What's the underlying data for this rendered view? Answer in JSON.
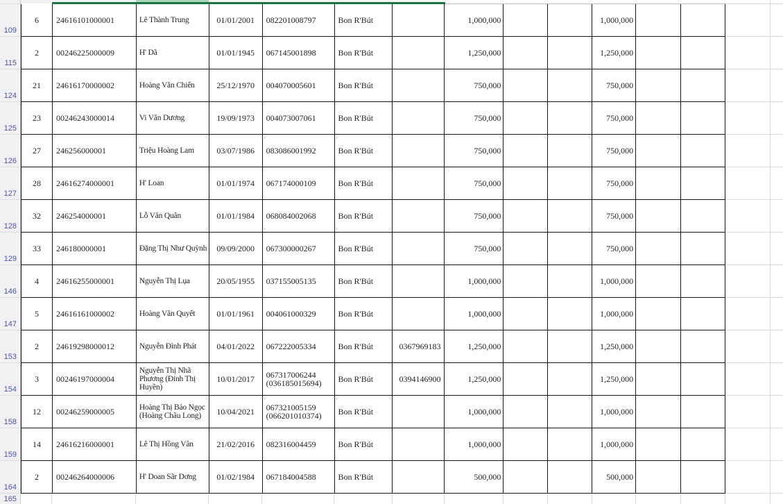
{
  "sheet": {
    "row_labels": [
      "109",
      "115",
      "124",
      "125",
      "126",
      "127",
      "128",
      "129",
      "146",
      "147",
      "153",
      "154",
      "158",
      "159",
      "164",
      "165"
    ],
    "colors": {
      "selection_border_green": "#1E7145",
      "selection_fill_green": "#A9D8BA",
      "row_label_blue": "#4A54A6",
      "cell_border": "#161616",
      "header_bg": "#F1F1F4"
    }
  },
  "table": {
    "rows": [
      {
        "count": "6",
        "id": "24616101000001",
        "name": "Lê Thành Trung",
        "dob": "01/01/2001",
        "id2": "082201008797",
        "village": "Bon R'Bút",
        "phone": "",
        "amount1": "1,000,000",
        "amount2": "1,000,000"
      },
      {
        "count": "2",
        "id": "00246225000009",
        "name": "H' Dã",
        "dob": "01/01/1945",
        "id2": "067145001898",
        "village": "Bon R'Bút",
        "phone": "",
        "amount1": "1,250,000",
        "amount2": "1,250,000"
      },
      {
        "count": "21",
        "id": "24616170000002",
        "name": "Hoàng Văn Chiến",
        "dob": "25/12/1970",
        "id2": "004070005601",
        "village": "Bon R'Bút",
        "phone": "",
        "amount1": "750,000",
        "amount2": "750,000"
      },
      {
        "count": "23",
        "id": "00246243000014",
        "name": "Vi Văn Dương",
        "dob": "19/09/1973",
        "id2": "004073007061",
        "village": "Bon R'Bút",
        "phone": "",
        "amount1": "750,000",
        "amount2": "750,000"
      },
      {
        "count": "27",
        "id": "246256000001",
        "name": "Triệu Hoàng Lam",
        "dob": "03/07/1986",
        "id2": "083086001992",
        "village": "Bon R'Bút",
        "phone": "",
        "amount1": "750,000",
        "amount2": "750,000"
      },
      {
        "count": "28",
        "id": "24616274000001",
        "name": "H' Loan",
        "dob": "01/01/1974",
        "id2": "067174000109",
        "village": "Bon R'Bút",
        "phone": "",
        "amount1": "750,000",
        "amount2": "750,000"
      },
      {
        "count": "32",
        "id": "246254000001",
        "name": "Lỗ Văn Quân",
        "dob": "01/01/1984",
        "id2": "068084002068",
        "village": "Bon R'Bút",
        "phone": "",
        "amount1": "750,000",
        "amount2": "750,000"
      },
      {
        "count": "33",
        "id": "246180000001",
        "name": "Đặng Thị Như Quỳnh",
        "dob": "09/09/2000",
        "id2": "067300000267",
        "village": "Bon R'Bút",
        "phone": "",
        "amount1": "750,000",
        "amount2": "750,000"
      },
      {
        "count": "4",
        "id": "24616255000001",
        "name": "Nguyễn Thị Lụa",
        "dob": "20/05/1955",
        "id2": "037155005135",
        "village": "Bon R'Bút",
        "phone": "",
        "amount1": "1,000,000",
        "amount2": "1,000,000"
      },
      {
        "count": "5",
        "id": "24616161000002",
        "name": "Hoàng Văn Quyết",
        "dob": "01/01/1961",
        "id2": "004061000329",
        "village": "Bon R'Bút",
        "phone": "",
        "amount1": "1,000,000",
        "amount2": "1,000,000"
      },
      {
        "count": "2",
        "id": "24619298000012",
        "name": "Nguyễn Đình Phát",
        "dob": "04/01/2022",
        "id2": "067222005334",
        "village": "Bon R'Bút",
        "phone": "0367969183",
        "amount1": "1,250,000",
        "amount2": "1,250,000"
      },
      {
        "count": "3",
        "id": "00246197000004",
        "name": "Nguyễn Thị Nhã Phương (Đinh Thị Huyền)",
        "dob": "10/01/2017",
        "id2": "067317006244 (036185015694)",
        "village": "Bon R'Bút",
        "phone": "0394146900",
        "amount1": "1,250,000",
        "amount2": "1,250,000"
      },
      {
        "count": "12",
        "id": "00246259000005",
        "name": "Hoàng Thị Bảo Ngọc (Hoàng Châu Long)",
        "dob": "10/04/2021",
        "id2": "067321005159 (066201010374)",
        "village": "Bon R'Bút",
        "phone": "",
        "amount1": "1,000,000",
        "amount2": "1,000,000"
      },
      {
        "count": "14",
        "id": "24616216000001",
        "name": "Lê Thị Hồng Vân",
        "dob": "21/02/2016",
        "id2": "082316004459",
        "village": "Bon R'Bút",
        "phone": "",
        "amount1": "1,000,000",
        "amount2": "1,000,000"
      },
      {
        "count": "2",
        "id": "00246264000006",
        "name": "H' Doan Sãr Dơng",
        "dob": "01/02/1984",
        "id2": "067184004588",
        "village": "Bon R'Bút",
        "phone": "",
        "amount1": "500,000",
        "amount2": "500,000"
      }
    ]
  }
}
